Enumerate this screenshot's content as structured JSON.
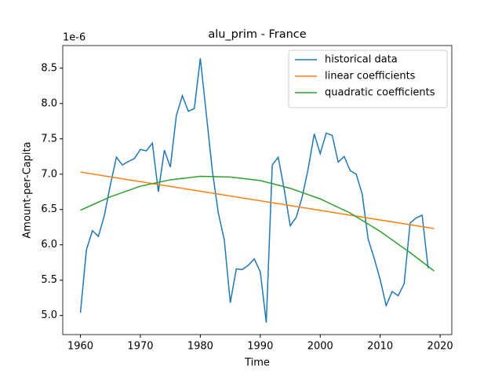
{
  "chart_data": {
    "type": "line",
    "title": "alu_prim - France",
    "xlabel": "Time",
    "ylabel": "Amount-per-Capita",
    "offset_text": "1e-6",
    "series": [
      {
        "name": "historical data",
        "color": "#1f77b4",
        "x": [
          1960,
          1961,
          1962,
          1963,
          1964,
          1965,
          1966,
          1967,
          1968,
          1969,
          1970,
          1971,
          1972,
          1973,
          1974,
          1975,
          1976,
          1977,
          1978,
          1979,
          1980,
          1981,
          1982,
          1983,
          1984,
          1985,
          1986,
          1987,
          1988,
          1989,
          1990,
          1991,
          1992,
          1993,
          1994,
          1995,
          1996,
          1997,
          1998,
          1999,
          2000,
          2001,
          2002,
          2003,
          2004,
          2005,
          2006,
          2007,
          2008,
          2009,
          2010,
          2011,
          2012,
          2013,
          2014,
          2015,
          2016,
          2017,
          2018
        ],
        "values": [
          5.04,
          5.93,
          6.2,
          6.12,
          6.42,
          6.85,
          7.24,
          7.13,
          7.18,
          7.22,
          7.35,
          7.33,
          7.44,
          6.75,
          7.34,
          7.1,
          7.83,
          8.11,
          7.89,
          7.93,
          8.64,
          7.85,
          7.05,
          6.45,
          6.07,
          5.18,
          5.66,
          5.65,
          5.71,
          5.8,
          5.62,
          4.9,
          7.13,
          7.24,
          6.78,
          6.27,
          6.39,
          6.68,
          7.08,
          7.57,
          7.29,
          7.58,
          7.55,
          7.17,
          7.25,
          7.05,
          7.0,
          6.72,
          6.08,
          5.81,
          5.51,
          5.14,
          5.34,
          5.28,
          5.45,
          6.31,
          6.38,
          6.42,
          5.67
        ]
      },
      {
        "name": "linear coefficients",
        "color": "#ff7f0e",
        "x": [
          1960,
          2019
        ],
        "values": [
          7.03,
          6.23
        ]
      },
      {
        "name": "quadratic coefficients",
        "color": "#2ca02c",
        "x": [
          1960,
          1965,
          1970,
          1975,
          1980,
          1985,
          1990,
          1995,
          2000,
          2005,
          2010,
          2015,
          2019
        ],
        "values": [
          6.49,
          6.68,
          6.83,
          6.92,
          6.97,
          6.96,
          6.91,
          6.8,
          6.65,
          6.45,
          6.19,
          5.89,
          5.63
        ]
      }
    ],
    "xlim": [
      1957.05,
      2021.95
    ],
    "xticks": [
      1960,
      1970,
      1980,
      1990,
      2000,
      2010,
      2020
    ],
    "ylim": [
      4.73,
      8.82
    ],
    "yticks": [
      {
        "value": 5,
        "label": "5.0"
      },
      5.5,
      {
        "value": 6,
        "label": "6.0"
      },
      6.5,
      {
        "value": 7,
        "label": "7.0"
      },
      7.5,
      {
        "value": 8,
        "label": "8.0"
      },
      8.5
    ],
    "legend": "upper right"
  }
}
